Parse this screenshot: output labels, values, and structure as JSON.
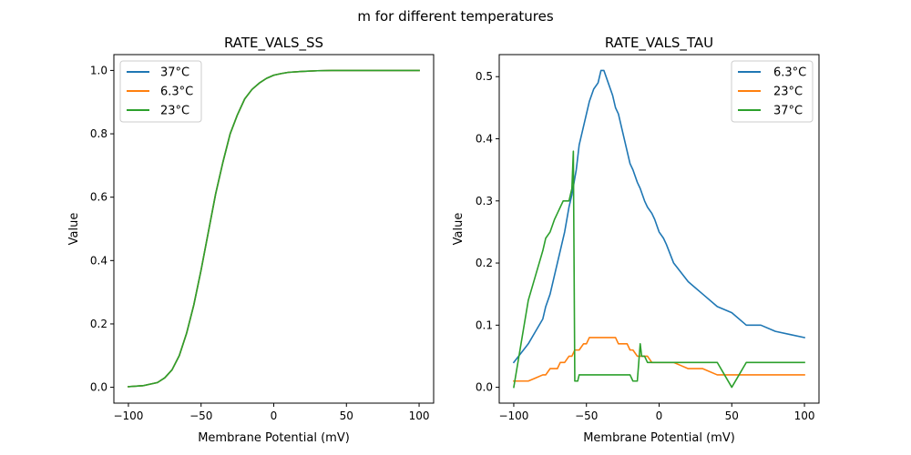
{
  "figure": {
    "suptitle": "m for different temperatures"
  },
  "chart_data": [
    {
      "type": "line",
      "title": "RATE_VALS_SS",
      "xlabel": "Membrane Potential (mV)",
      "ylabel": "Value",
      "xlim": [
        -110,
        110
      ],
      "ylim": [
        -0.05,
        1.05
      ],
      "xticks": [
        -100,
        -50,
        0,
        50,
        100
      ],
      "yticks": [
        0.0,
        0.2,
        0.4,
        0.6,
        0.8,
        1.0
      ],
      "ytick_labels": [
        "0.0",
        "0.2",
        "0.4",
        "0.6",
        "0.8",
        "1.0"
      ],
      "legend": "top-left",
      "grid": false,
      "series": [
        {
          "name": "37°C",
          "color": "#1f77b4",
          "x": [
            -100,
            -90,
            -80,
            -75,
            -70,
            -65,
            -60,
            -55,
            -50,
            -45,
            -40,
            -35,
            -30,
            -25,
            -20,
            -15,
            -10,
            -5,
            0,
            5,
            10,
            20,
            30,
            40,
            50,
            60,
            80,
            100
          ],
          "y": [
            0.002,
            0.005,
            0.015,
            0.03,
            0.055,
            0.1,
            0.17,
            0.26,
            0.37,
            0.49,
            0.61,
            0.71,
            0.8,
            0.86,
            0.91,
            0.94,
            0.96,
            0.975,
            0.985,
            0.99,
            0.994,
            0.997,
            0.999,
            1.0,
            1.0,
            1.0,
            1.0,
            1.0
          ]
        },
        {
          "name": "6.3°C",
          "color": "#ff7f0e",
          "x": [
            -100,
            -90,
            -80,
            -75,
            -70,
            -65,
            -60,
            -55,
            -50,
            -45,
            -40,
            -35,
            -30,
            -25,
            -20,
            -15,
            -10,
            -5,
            0,
            5,
            10,
            20,
            30,
            40,
            50,
            60,
            80,
            100
          ],
          "y": [
            0.002,
            0.005,
            0.015,
            0.03,
            0.055,
            0.1,
            0.17,
            0.26,
            0.37,
            0.49,
            0.61,
            0.71,
            0.8,
            0.86,
            0.91,
            0.94,
            0.96,
            0.975,
            0.985,
            0.99,
            0.994,
            0.997,
            0.999,
            1.0,
            1.0,
            1.0,
            1.0,
            1.0
          ]
        },
        {
          "name": "23°C",
          "color": "#2ca02c",
          "x": [
            -100,
            -90,
            -80,
            -75,
            -70,
            -65,
            -60,
            -55,
            -50,
            -45,
            -40,
            -35,
            -30,
            -25,
            -20,
            -15,
            -10,
            -5,
            0,
            5,
            10,
            20,
            30,
            40,
            50,
            60,
            80,
            100
          ],
          "y": [
            0.002,
            0.005,
            0.015,
            0.03,
            0.055,
            0.1,
            0.17,
            0.26,
            0.37,
            0.49,
            0.61,
            0.71,
            0.8,
            0.86,
            0.91,
            0.94,
            0.96,
            0.975,
            0.985,
            0.99,
            0.994,
            0.997,
            0.999,
            1.0,
            1.0,
            1.0,
            1.0,
            1.0
          ]
        }
      ]
    },
    {
      "type": "line",
      "title": "RATE_VALS_TAU",
      "xlabel": "Membrane Potential (mV)",
      "ylabel": "Value",
      "xlim": [
        -110,
        110
      ],
      "ylim": [
        -0.0255,
        0.5355
      ],
      "xticks": [
        -100,
        -50,
        0,
        50,
        100
      ],
      "yticks": [
        0.0,
        0.1,
        0.2,
        0.3,
        0.4,
        0.5
      ],
      "ytick_labels": [
        "0.0",
        "0.1",
        "0.2",
        "0.3",
        "0.4",
        "0.5"
      ],
      "legend": "top-right",
      "grid": false,
      "series": [
        {
          "name": "6.3°C",
          "color": "#1f77b4",
          "x": [
            -100,
            -90,
            -85,
            -80,
            -78,
            -75,
            -72,
            -70,
            -68,
            -65,
            -62,
            -60,
            -57,
            -55,
            -53,
            -50,
            -48,
            -45,
            -42,
            -40,
            -38,
            -35,
            -32,
            -30,
            -28,
            -25,
            -22,
            -20,
            -18,
            -15,
            -13,
            -10,
            -8,
            -5,
            -3,
            0,
            3,
            5,
            10,
            20,
            30,
            40,
            50,
            60,
            70,
            80,
            90,
            100
          ],
          "y": [
            0.04,
            0.07,
            0.09,
            0.11,
            0.13,
            0.15,
            0.18,
            0.2,
            0.22,
            0.25,
            0.29,
            0.31,
            0.35,
            0.39,
            0.41,
            0.44,
            0.46,
            0.48,
            0.49,
            0.51,
            0.51,
            0.49,
            0.47,
            0.45,
            0.44,
            0.41,
            0.38,
            0.36,
            0.35,
            0.33,
            0.32,
            0.3,
            0.29,
            0.28,
            0.27,
            0.25,
            0.24,
            0.23,
            0.2,
            0.17,
            0.15,
            0.13,
            0.12,
            0.1,
            0.1,
            0.09,
            0.085,
            0.08
          ]
        },
        {
          "name": "23°C",
          "color": "#ff7f0e",
          "x": [
            -100,
            -95,
            -90,
            -85,
            -80,
            -78,
            -75,
            -70,
            -68,
            -65,
            -62,
            -60,
            -58,
            -55,
            -52,
            -50,
            -48,
            -45,
            -40,
            -35,
            -30,
            -28,
            -25,
            -22,
            -20,
            -18,
            -15,
            -13,
            -10,
            -8,
            -5,
            0,
            5,
            10,
            15,
            20,
            25,
            30,
            40,
            50,
            60,
            70,
            80,
            90,
            100
          ],
          "y": [
            0.01,
            0.01,
            0.01,
            0.015,
            0.02,
            0.02,
            0.03,
            0.03,
            0.04,
            0.04,
            0.05,
            0.05,
            0.06,
            0.06,
            0.07,
            0.07,
            0.08,
            0.08,
            0.08,
            0.08,
            0.08,
            0.07,
            0.07,
            0.07,
            0.06,
            0.06,
            0.05,
            0.05,
            0.05,
            0.05,
            0.04,
            0.04,
            0.04,
            0.04,
            0.035,
            0.03,
            0.03,
            0.03,
            0.02,
            0.02,
            0.02,
            0.02,
            0.02,
            0.02,
            0.02
          ]
        },
        {
          "name": "37°C",
          "color": "#2ca02c",
          "x": [
            -100,
            -95,
            -90,
            -85,
            -80,
            -78,
            -75,
            -72,
            -70,
            -68,
            -66,
            -64,
            -62,
            -61,
            -60,
            -59,
            -58,
            -57,
            -56,
            -55,
            -50,
            -45,
            -40,
            -35,
            -30,
            -25,
            -20,
            -18,
            -16,
            -15,
            -14,
            -13,
            -12,
            -10,
            -8,
            -5,
            0,
            10,
            20,
            30,
            40,
            45,
            50,
            55,
            60,
            70,
            80,
            90,
            100
          ],
          "y": [
            0.0,
            0.07,
            0.14,
            0.18,
            0.22,
            0.24,
            0.25,
            0.27,
            0.28,
            0.29,
            0.3,
            0.3,
            0.3,
            0.31,
            0.32,
            0.38,
            0.01,
            0.01,
            0.01,
            0.02,
            0.02,
            0.02,
            0.02,
            0.02,
            0.02,
            0.02,
            0.02,
            0.01,
            0.01,
            0.01,
            0.04,
            0.07,
            0.05,
            0.05,
            0.04,
            0.04,
            0.04,
            0.04,
            0.04,
            0.04,
            0.04,
            0.02,
            0.0,
            0.02,
            0.04,
            0.04,
            0.04,
            0.04,
            0.04
          ]
        }
      ]
    }
  ]
}
